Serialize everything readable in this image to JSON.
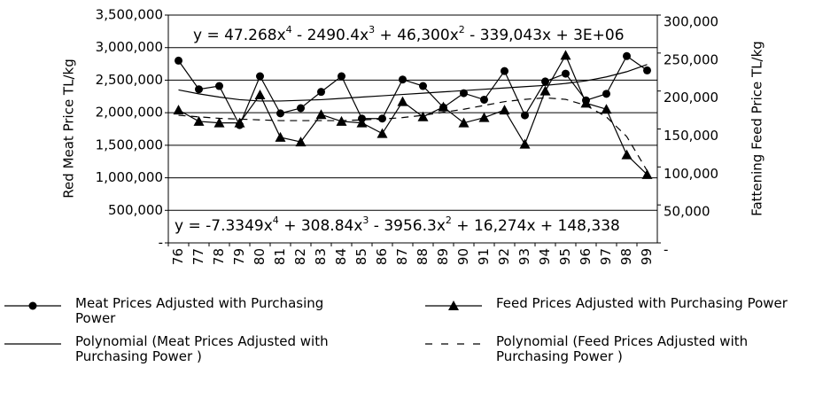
{
  "chart_data": {
    "type": "line",
    "y_label": "Red Meat  Price TL/kg",
    "y2_label": "Fattening Feed  Price TL/kg",
    "annotations": [
      [
        "y = 47.268x",
        "4",
        "  - 2490.4x",
        "3",
        " + 46,300x",
        "2",
        " - 339,043x + 3E+06"
      ],
      [
        "y = -7.3349x",
        "4",
        "  + 308.84x",
        "3",
        " - 3956.3x",
        "2",
        " + 16,274x + 148,338"
      ]
    ],
    "categories": [
      "1976",
      "1977",
      "1978",
      "1979",
      "1980",
      "1981",
      "1982",
      "1983",
      "1984",
      "1985",
      "1986",
      "1987",
      "1988",
      "1989",
      "1990",
      "1991",
      "1992",
      "1993",
      "1994",
      "1995",
      "1996",
      "1997",
      "1998",
      "1999"
    ],
    "ylim": [
      0,
      3500000
    ],
    "yticks": [
      {
        "value": 0,
        "label": "-"
      },
      {
        "value": 500000,
        "label": "500,000"
      },
      {
        "value": 1000000,
        "label": "1,000,000"
      },
      {
        "value": 1500000,
        "label": "1,500,000"
      },
      {
        "value": 2000000,
        "label": "2,000,000"
      },
      {
        "value": 2500000,
        "label": "2,500,000"
      },
      {
        "value": 3000000,
        "label": "3,000,000"
      },
      {
        "value": 3500000,
        "label": "3,500,000"
      }
    ],
    "y2lim": [
      0,
      300000
    ],
    "y2ticks": [
      {
        "value": 0,
        "label": "-"
      },
      {
        "value": 50000,
        "label": "50,000"
      },
      {
        "value": 100000,
        "label": "100,000"
      },
      {
        "value": 150000,
        "label": "150,000"
      },
      {
        "value": 200000,
        "label": "200,000"
      },
      {
        "value": 250000,
        "label": "250,000"
      },
      {
        "value": 300000,
        "label": "300,000"
      }
    ],
    "grid": true,
    "series": [
      {
        "name": "Meat Prices Adjusted with Purchasing Power",
        "color": "#000000",
        "marker": "circle",
        "linestyle": "solid",
        "values": [
          2800000,
          2360000,
          2410000,
          1810000,
          2560000,
          1990000,
          2070000,
          2320000,
          2560000,
          1910000,
          1910000,
          2510000,
          2410000,
          2080000,
          2300000,
          2200000,
          2640000,
          1960000,
          2480000,
          2600000,
          2190000,
          2290000,
          2870000,
          2650000
        ]
      },
      {
        "name": "Feed Prices Adjusted with Purchasing Power",
        "color": "#000000",
        "marker": "triangle",
        "linestyle": "solid",
        "axis": "y2",
        "values": [
          175000,
          160000,
          158000,
          158000,
          195000,
          139000,
          133000,
          169000,
          160000,
          158000,
          144000,
          186000,
          166000,
          179000,
          158000,
          165000,
          175000,
          130000,
          200000,
          247000,
          184000,
          176000,
          116000,
          90000
        ]
      },
      {
        "name": "Polynomial (Meat Prices Adjusted with Purchasing Power )",
        "color": "#000000",
        "marker": "none",
        "linestyle": "solid",
        "values": [
          2350000,
          2290000,
          2240000,
          2200000,
          2180000,
          2180000,
          2190000,
          2200000,
          2220000,
          2240000,
          2260000,
          2280000,
          2300000,
          2320000,
          2340000,
          2360000,
          2380000,
          2400000,
          2420000,
          2450000,
          2490000,
          2550000,
          2630000,
          2740000
        ]
      },
      {
        "name": "Polynomial (Feed Prices Adjusted with Purchasing Power )",
        "color": "#000000",
        "marker": "none",
        "linestyle": "dashed",
        "axis": "y2",
        "values": [
          168000,
          166000,
          164000,
          163000,
          162000,
          161000,
          161000,
          161000,
          161000,
          162000,
          163000,
          165000,
          168000,
          172000,
          176000,
          181000,
          186000,
          189000,
          191000,
          189000,
          181000,
          166000,
          140000,
          95000
        ]
      }
    ]
  }
}
